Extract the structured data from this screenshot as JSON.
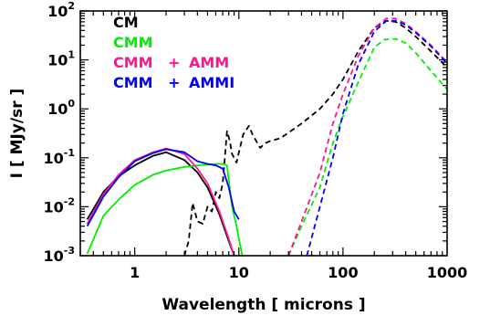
{
  "chart_data": {
    "type": "line",
    "xlabel": "Wavelength [ microns ]",
    "ylabel": "I [ MJy/sr ]",
    "x_scale": "log",
    "y_scale": "log",
    "xlim": [
      0.3,
      1000
    ],
    "ylim": [
      0.001,
      100
    ],
    "x_tick_labels": [
      "1",
      "10",
      "100",
      "1000"
    ],
    "y_tick_labels": [
      "10-3",
      "10-2",
      "10-1",
      "100",
      "101",
      "102"
    ],
    "grid": false,
    "legend_position": "top-left",
    "series": [
      {
        "name": "CM",
        "color": "#000000",
        "segments": [
          {
            "style": "solid",
            "x": [
              0.35,
              0.5,
              0.7,
              1.0,
              1.5,
              2.0,
              3.0,
              4.0,
              5.0,
              6.5,
              8.0,
              9.0
            ],
            "y": [
              0.0055,
              0.02,
              0.042,
              0.07,
              0.11,
              0.13,
              0.09,
              0.05,
              0.025,
              0.007,
              0.002,
              0.001
            ]
          },
          {
            "style": "dashed",
            "x": [
              3.0,
              3.3,
              3.6,
              4.0,
              4.5,
              5.0,
              5.5,
              6.0,
              6.5,
              7.0,
              7.7,
              8.2,
              8.6,
              9.5,
              11.0,
              12.5,
              13.5,
              16.0,
              18.0,
              20.0,
              25.0,
              40.0,
              60.0,
              80.0,
              100.0,
              140.0,
              200.0,
              260.0,
              320.0,
              400.0,
              500.0,
              700.0,
              1000.0
            ],
            "y": [
              0.001,
              0.002,
              0.012,
              0.005,
              0.0045,
              0.01,
              0.008,
              0.02,
              0.015,
              0.03,
              0.35,
              0.22,
              0.12,
              0.08,
              0.3,
              0.45,
              0.3,
              0.16,
              0.2,
              0.22,
              0.25,
              0.5,
              1.0,
              2.0,
              4.0,
              15.0,
              45.0,
              63.0,
              60.0,
              45.0,
              30.0,
              15.0,
              7.0
            ]
          }
        ]
      },
      {
        "name": "CMM",
        "color": "#00ee00",
        "segments": [
          {
            "style": "solid",
            "x": [
              0.35,
              0.5,
              0.7,
              1.0,
              1.5,
              2.0,
              3.0,
              4.0,
              5.0,
              6.0,
              7.0,
              7.7,
              8.0,
              8.6,
              9.5,
              10.0,
              10.8
            ],
            "y": [
              0.0011,
              0.0065,
              0.014,
              0.028,
              0.045,
              0.055,
              0.065,
              0.07,
              0.072,
              0.075,
              0.075,
              0.07,
              0.035,
              0.01,
              0.004,
              0.0022,
              0.001
            ]
          },
          {
            "style": "dashed",
            "x": [
              30.0,
              40.0,
              60.0,
              80.0,
              100.0,
              140.0,
              200.0,
              250.0,
              320.0,
              400.0,
              500.0,
              700.0,
              1000.0
            ],
            "y": [
              0.001,
              0.004,
              0.025,
              0.2,
              0.7,
              3.5,
              18.0,
              26.0,
              27.0,
              22.0,
              14.0,
              6.0,
              2.5
            ]
          }
        ]
      },
      {
        "name": "CMM + AMM",
        "color": "#ff1493",
        "segments": [
          {
            "style": "solid",
            "x": [
              0.35,
              0.5,
              0.7,
              1.0,
              1.5,
              2.0,
              3.0,
              4.0,
              5.0,
              6.5,
              8.0,
              9.0
            ],
            "y": [
              0.0045,
              0.018,
              0.045,
              0.09,
              0.13,
              0.155,
              0.12,
              0.06,
              0.03,
              0.008,
              0.0022,
              0.001
            ]
          },
          {
            "style": "dashed",
            "x": [
              30.0,
              40.0,
              60.0,
              80.0,
              100.0,
              140.0,
              200.0,
              260.0,
              320.0,
              400.0,
              500.0,
              700.0,
              1000.0
            ],
            "y": [
              0.001,
              0.005,
              0.05,
              0.5,
              2.0,
              12.0,
              45.0,
              70.0,
              70.0,
              55.0,
              38.0,
              20.0,
              9.0
            ]
          }
        ]
      },
      {
        "name": "CMM + AMMI",
        "color": "#0000ff",
        "segments": [
          {
            "style": "solid",
            "x": [
              0.35,
              0.5,
              0.7,
              1.0,
              1.5,
              2.0,
              3.0,
              4.0,
              5.0,
              6.0,
              7.0,
              8.0,
              9.0,
              10.0
            ],
            "y": [
              0.004,
              0.016,
              0.04,
              0.085,
              0.125,
              0.15,
              0.13,
              0.085,
              0.075,
              0.07,
              0.06,
              0.025,
              0.008,
              0.0055
            ]
          },
          {
            "style": "dashed",
            "x": [
              45.0,
              60.0,
              80.0,
              100.0,
              140.0,
              200.0,
              260.0,
              320.0,
              400.0,
              500.0,
              700.0,
              1000.0
            ],
            "y": [
              0.001,
              0.01,
              0.1,
              0.8,
              8.0,
              38.0,
              62.0,
              63.0,
              52.0,
              36.0,
              19.0,
              8.5
            ]
          }
        ]
      }
    ]
  }
}
